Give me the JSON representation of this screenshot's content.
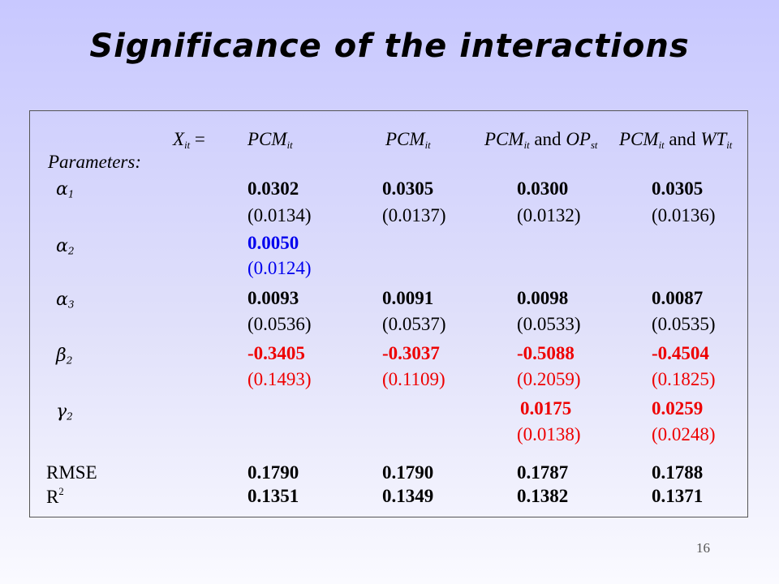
{
  "title": "Significance of the interactions",
  "page_number": "16",
  "header": {
    "x_label": "X",
    "x_sub": "it",
    "equals": "=",
    "pcm": "PCM",
    "pcm_sub": "it",
    "and": " and ",
    "op": "OP",
    "op_sub": "st",
    "wt": "WT",
    "wt_sub": "it"
  },
  "parameters_label": "Parameters:",
  "rows": {
    "alpha1": {
      "symbol": "α",
      "sub": "1",
      "c1": "0.0302",
      "c1_se": "(0.0134)",
      "c2": "0.0305",
      "c2_se": "(0.0137)",
      "c3": "0.0300",
      "c3_se": "(0.0132)",
      "c4": "0.0305",
      "c4_se": "(0.0136)"
    },
    "alpha2": {
      "symbol": "α",
      "sub": "2",
      "c1": "0.0050",
      "c1_se": "(0.0124)"
    },
    "alpha3": {
      "symbol": "α",
      "sub": "3",
      "c1": "0.0093",
      "c1_se": "(0.0536)",
      "c2": "0.0091",
      "c2_se": "(0.0537)",
      "c3": "0.0098",
      "c3_se": "(0.0533)",
      "c4": "0.0087",
      "c4_se": "(0.0535)"
    },
    "beta2": {
      "symbol": "β",
      "sub": "2",
      "c1": "-0.3405",
      "c1_se": "(0.1493)",
      "c2": "-0.3037",
      "c2_se": "(0.1109)",
      "c3": "-0.5088",
      "c3_se": "(0.2059)",
      "c4": "-0.4504",
      "c4_se": "(0.1825)"
    },
    "gamma2": {
      "symbol": "γ",
      "sub": "2",
      "c3": "0.0175",
      "c3_se": "(0.0138)",
      "c4": "0.0259",
      "c4_se": "(0.0248)"
    },
    "rmse": {
      "label": "RMSE",
      "c1": "0.1790",
      "c2": "0.1790",
      "c3": "0.1787",
      "c4": "0.1788"
    },
    "r2": {
      "label": "R",
      "sup": "2",
      "c1": "0.1351",
      "c2": "0.1349",
      "c3": "0.1382",
      "c4": "0.1371"
    }
  },
  "colors": {
    "highlight_alpha2": "#0000ee",
    "highlight_beta_gamma": "#ee0000",
    "text": "#000000"
  }
}
